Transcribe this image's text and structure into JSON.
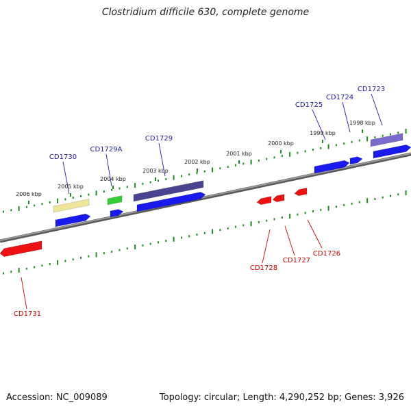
{
  "title": "Clostridium difficile 630, complete genome",
  "footer": {
    "accession": "Accession: NC_009089",
    "summary": "Topology: circular; Length: 4,290,252 bp; Genes: 3,926"
  },
  "colors": {
    "backbone": "#7a7a7a",
    "tick": "#1f8a1f",
    "forward_gene": "#1a1aee",
    "reverse_gene": "#ee1111",
    "forward_label": "#1a1aaa",
    "reverse_label": "#cc0000",
    "feature_yellow": "#eee49a",
    "feature_green": "#33cc33",
    "feature_navy": "#4a4490",
    "feature_lavender": "#7a6acc"
  },
  "scale_labels": [
    {
      "text": "2006 kbp"
    },
    {
      "text": "2005 kbp"
    },
    {
      "text": "2004 kbp"
    },
    {
      "text": "2003 kbp"
    },
    {
      "text": "2002 kbp"
    },
    {
      "text": "2001 kbp"
    },
    {
      "text": "2000 kbp"
    },
    {
      "text": "1999 kbp"
    },
    {
      "text": "1998 kbp"
    }
  ],
  "forward_gene_labels": [
    {
      "text": "CD1730"
    },
    {
      "text": "CD1729A"
    },
    {
      "text": "CD1729"
    },
    {
      "text": "CD1725"
    },
    {
      "text": "CD1724"
    },
    {
      "text": "CD1723"
    }
  ],
  "reverse_gene_labels": [
    {
      "text": "CD1731"
    },
    {
      "text": "CD1728"
    },
    {
      "text": "CD1727"
    },
    {
      "text": "CD1726"
    }
  ]
}
